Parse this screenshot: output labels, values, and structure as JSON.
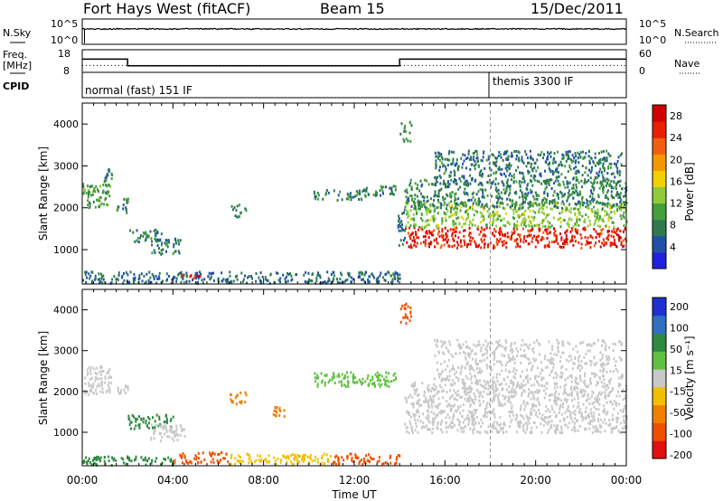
{
  "header": {
    "station": "Fort Hays West (fitACF)",
    "beam": "Beam 15",
    "date": "15/Dec/2011"
  },
  "panels": {
    "nsky": {
      "label": "N.Sky",
      "ticks": [
        "10^5",
        "10^0"
      ]
    },
    "nsearch": {
      "label": "N.Search",
      "ticks": [
        "10^5",
        "10^0"
      ]
    },
    "freq": {
      "label": "Freq.",
      "unit": "[MHz]",
      "ticks": [
        "18",
        "8"
      ]
    },
    "nave": {
      "label": "Nave",
      "ticks": [
        "60",
        "0"
      ]
    },
    "cpid": {
      "label": "CPID",
      "modes": [
        "normal (fast) 151 IF",
        "themis 3300 IF"
      ]
    }
  },
  "colors": {
    "power_scale": [
      "#2020e0",
      "#2050a8",
      "#2e7a4e",
      "#43a03a",
      "#8fcc3a",
      "#f0d000",
      "#f39800",
      "#f06010",
      "#e82000",
      "#d00000"
    ],
    "velocity_scale": [
      "#2030d0",
      "#3070c0",
      "#2e8a40",
      "#60c040",
      "#c8c8c8",
      "#f0c000",
      "#f08000",
      "#f05000",
      "#e01010"
    ],
    "power_band": "#f03818",
    "ground_scatter": "#c8c8c8"
  },
  "chart_data": [
    {
      "type": "heatmap",
      "name": "power",
      "xlabel": "Time UT",
      "ylabel": "Slant Range [km]",
      "x_ticks": [
        "00:00",
        "04:00",
        "08:00",
        "12:00",
        "16:00",
        "20:00",
        "00:00"
      ],
      "xlim_hours": [
        0,
        24
      ],
      "y_ticks": [
        1000,
        2000,
        3000,
        4000
      ],
      "ylim": [
        180,
        4500
      ],
      "colorbar": {
        "label": "Power [dB]",
        "ticks": [
          4,
          8,
          12,
          16,
          20,
          24,
          28
        ],
        "range": [
          0,
          30
        ]
      },
      "features": [
        {
          "hours": [
            0.0,
            1.2
          ],
          "range": [
            2000,
            2600
          ],
          "value": 10
        },
        {
          "hours": [
            0.9,
            1.3
          ],
          "range": [
            2600,
            2950
          ],
          "value": 8
        },
        {
          "hours": [
            1.5,
            2.0
          ],
          "range": [
            1900,
            2250
          ],
          "value": 8
        },
        {
          "hours": [
            2.0,
            3.5
          ],
          "range": [
            1200,
            1500
          ],
          "value": 7
        },
        {
          "hours": [
            3.0,
            4.3
          ],
          "range": [
            900,
            1300
          ],
          "value": 7
        },
        {
          "hours": [
            4.3,
            5.3
          ],
          "range": [
            320,
            420
          ],
          "value": 27
        },
        {
          "hours": [
            0.0,
            14.0
          ],
          "range": [
            200,
            480
          ],
          "value": 6
        },
        {
          "hours": [
            6.5,
            7.2
          ],
          "range": [
            1800,
            2100
          ],
          "value": 8
        },
        {
          "hours": [
            10.2,
            12.5
          ],
          "range": [
            2200,
            2450
          ],
          "value": 8
        },
        {
          "hours": [
            12.4,
            13.8
          ],
          "range": [
            2300,
            2550
          ],
          "value": 8
        },
        {
          "hours": [
            13.9,
            14.2
          ],
          "range": [
            1100,
            2000
          ],
          "value": 6
        },
        {
          "hours": [
            14.0,
            14.5
          ],
          "range": [
            3600,
            4100
          ],
          "value": 9
        },
        {
          "hours": [
            14.2,
            24.0
          ],
          "range": [
            1050,
            1550
          ],
          "value": 26
        },
        {
          "hours": [
            14.2,
            24.0
          ],
          "range": [
            1550,
            2150
          ],
          "value": 13
        },
        {
          "hours": [
            14.2,
            24.0
          ],
          "range": [
            2000,
            2700
          ],
          "value": 8
        },
        {
          "hours": [
            15.5,
            23.8
          ],
          "range": [
            2600,
            3400
          ],
          "value": 7
        }
      ]
    },
    {
      "type": "heatmap",
      "name": "velocity",
      "xlabel": "Time UT",
      "ylabel": "Slant Range [km]",
      "x_ticks": [
        "00:00",
        "04:00",
        "08:00",
        "12:00",
        "16:00",
        "20:00",
        "00:00"
      ],
      "xlim_hours": [
        0,
        24
      ],
      "y_ticks": [
        1000,
        2000,
        3000,
        4000
      ],
      "ylim": [
        180,
        4500
      ],
      "colorbar": {
        "label": "Velocity [m s⁻¹]",
        "ticks": [
          200,
          100,
          50,
          15,
          -15,
          -50,
          -100,
          -200
        ],
        "range": [
          -250,
          250
        ]
      },
      "features": [
        {
          "hours": [
            0.0,
            1.3
          ],
          "range": [
            1950,
            2650
          ],
          "value": 0
        },
        {
          "hours": [
            1.5,
            2.0
          ],
          "range": [
            1950,
            2200
          ],
          "value": 0
        },
        {
          "hours": [
            2.0,
            4.0
          ],
          "range": [
            1100,
            1450
          ],
          "value": 60
        },
        {
          "hours": [
            3.0,
            4.5
          ],
          "range": [
            800,
            1200
          ],
          "value": 0
        },
        {
          "hours": [
            4.0,
            6.5
          ],
          "range": [
            250,
            520
          ],
          "value": -110
        },
        {
          "hours": [
            6.5,
            11.0
          ],
          "range": [
            220,
            480
          ],
          "value": -40
        },
        {
          "hours": [
            11.0,
            14.0
          ],
          "range": [
            220,
            480
          ],
          "value": -110
        },
        {
          "hours": [
            0.0,
            4.0
          ],
          "range": [
            200,
            420
          ],
          "value": 60
        },
        {
          "hours": [
            6.5,
            7.2
          ],
          "range": [
            1700,
            2000
          ],
          "value": -60
        },
        {
          "hours": [
            8.3,
            9.0
          ],
          "range": [
            1400,
            1650
          ],
          "value": -60
        },
        {
          "hours": [
            10.2,
            13.8
          ],
          "range": [
            2150,
            2500
          ],
          "value": 40
        },
        {
          "hours": [
            14.0,
            14.5
          ],
          "range": [
            3700,
            4200
          ],
          "value": -160
        },
        {
          "hours": [
            14.2,
            24.0
          ],
          "range": [
            1000,
            1550
          ],
          "value": 0
        },
        {
          "hours": [
            14.2,
            24.0
          ],
          "range": [
            1550,
            2250
          ],
          "value": 0
        },
        {
          "hours": [
            15.5,
            23.8
          ],
          "range": [
            2200,
            3300
          ],
          "value": 0
        }
      ]
    },
    {
      "type": "line",
      "name": "frequency",
      "ylabel": "Freq. [MHz]",
      "ylim": [
        8,
        18
      ],
      "series": [
        {
          "x_hours": [
            0,
            2.0,
            2.0,
            14.0,
            14.0,
            24
          ],
          "values": [
            14.2,
            14.2,
            10.8,
            10.8,
            14.2,
            14.2
          ]
        }
      ]
    },
    {
      "type": "line",
      "name": "nave",
      "ylabel": "Nave",
      "ylim": [
        0,
        60
      ],
      "series": [
        {
          "x_hours": [
            0,
            24
          ],
          "values": [
            18,
            18
          ]
        }
      ]
    },
    {
      "type": "line",
      "name": "noise",
      "ylabel": "N.Sky / N.Search",
      "ylim_log10": [
        0,
        5
      ],
      "series": [
        {
          "x_hours": [
            0,
            0.05,
            6,
            12,
            18,
            24
          ],
          "values": [
            3.0,
            3.3,
            3.2,
            3.2,
            3.3,
            3.3
          ]
        }
      ]
    }
  ],
  "time_axis": {
    "xlabel": "Time UT",
    "tick_labels": [
      "00:00",
      "04:00",
      "08:00",
      "12:00",
      "16:00",
      "20:00",
      "00:00"
    ]
  }
}
